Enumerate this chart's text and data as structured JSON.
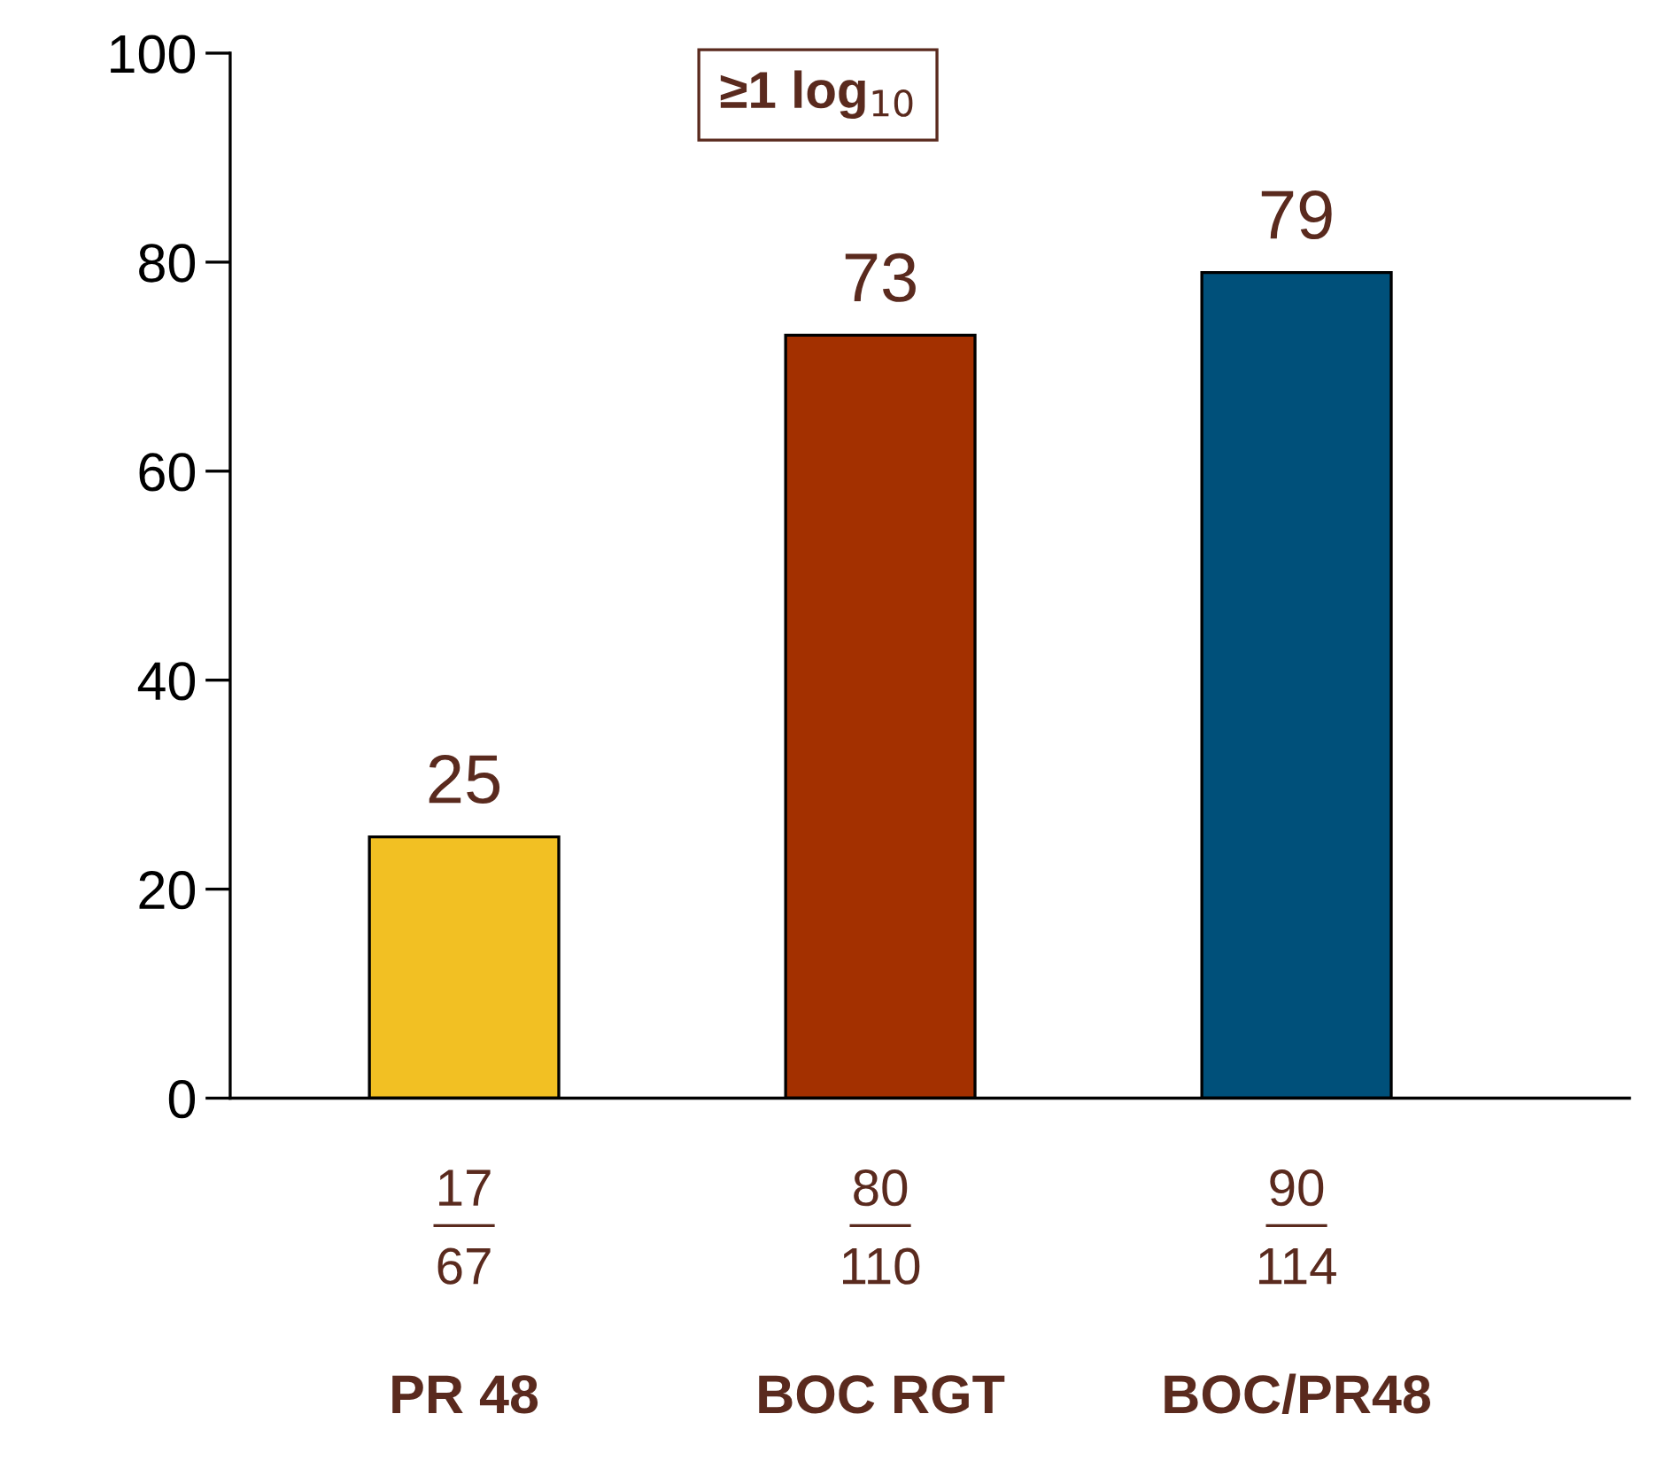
{
  "chart_data": {
    "type": "bar",
    "categories": [
      "PR 48",
      "BOC RGT",
      "BOC/PR48"
    ],
    "values": [
      25,
      73,
      79
    ],
    "colors": [
      "#f2c023",
      "#a33000",
      "#00507a"
    ],
    "ylim": [
      0,
      100
    ],
    "yticks": [
      0,
      20,
      40,
      60,
      80,
      100
    ],
    "data_labels": true,
    "grid": false,
    "legend": false,
    "annotations": [
      "≥1 log$_{10}$",
      "17",
      "67",
      "80",
      "110",
      "90",
      "114"
    ]
  }
}
